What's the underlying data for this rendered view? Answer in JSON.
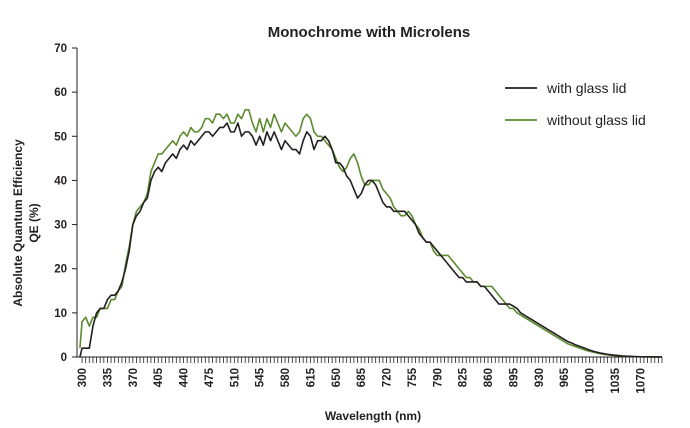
{
  "chart_data": {
    "type": "line",
    "title": "Monochrome with Microlens",
    "xlabel": "Wavelength (nm)",
    "ylabel_line1": "Absolute Quantum Efficiency",
    "ylabel_line2": "QE (%)",
    "xlim": [
      293,
      1100
    ],
    "ylim": [
      0,
      70
    ],
    "x_tick_labels": [
      "300",
      "335",
      "370",
      "405",
      "440",
      "475",
      "510",
      "545",
      "580",
      "615",
      "650",
      "685",
      "720",
      "755",
      "790",
      "825",
      "860",
      "895",
      "930",
      "965",
      "1000",
      "1035",
      "1070"
    ],
    "y_tick_labels": [
      "0",
      "10",
      "20",
      "30",
      "40",
      "50",
      "60",
      "70"
    ],
    "grid": false,
    "legend": "top-right",
    "series": [
      {
        "name": "with glass lid",
        "color": "#231f20",
        "points": [
          [
            297,
            0
          ],
          [
            300,
            2
          ],
          [
            305,
            2
          ],
          [
            310,
            2
          ],
          [
            315,
            7
          ],
          [
            320,
            10
          ],
          [
            325,
            11
          ],
          [
            330,
            11
          ],
          [
            335,
            13
          ],
          [
            340,
            14
          ],
          [
            345,
            14
          ],
          [
            350,
            15
          ],
          [
            355,
            17
          ],
          [
            360,
            20
          ],
          [
            365,
            24
          ],
          [
            370,
            30
          ],
          [
            375,
            32
          ],
          [
            380,
            33
          ],
          [
            385,
            35
          ],
          [
            390,
            36
          ],
          [
            395,
            40
          ],
          [
            400,
            42
          ],
          [
            405,
            43
          ],
          [
            410,
            42
          ],
          [
            415,
            44
          ],
          [
            420,
            45
          ],
          [
            425,
            46
          ],
          [
            430,
            45
          ],
          [
            435,
            47
          ],
          [
            440,
            48
          ],
          [
            445,
            47
          ],
          [
            450,
            49
          ],
          [
            455,
            48
          ],
          [
            460,
            49
          ],
          [
            465,
            50
          ],
          [
            470,
            51
          ],
          [
            475,
            51
          ],
          [
            480,
            50
          ],
          [
            485,
            51
          ],
          [
            490,
            52
          ],
          [
            495,
            52
          ],
          [
            500,
            53
          ],
          [
            505,
            51
          ],
          [
            510,
            51
          ],
          [
            515,
            53
          ],
          [
            520,
            50
          ],
          [
            525,
            51
          ],
          [
            530,
            51
          ],
          [
            535,
            50
          ],
          [
            540,
            48
          ],
          [
            545,
            50
          ],
          [
            550,
            48
          ],
          [
            555,
            51
          ],
          [
            560,
            49
          ],
          [
            565,
            51
          ],
          [
            570,
            49
          ],
          [
            575,
            47
          ],
          [
            580,
            49
          ],
          [
            585,
            48
          ],
          [
            590,
            47
          ],
          [
            595,
            47
          ],
          [
            600,
            46
          ],
          [
            605,
            49
          ],
          [
            610,
            51
          ],
          [
            615,
            50
          ],
          [
            620,
            47
          ],
          [
            625,
            49
          ],
          [
            630,
            49
          ],
          [
            635,
            50
          ],
          [
            640,
            49
          ],
          [
            645,
            47
          ],
          [
            650,
            44
          ],
          [
            655,
            44
          ],
          [
            660,
            43
          ],
          [
            665,
            41
          ],
          [
            670,
            40
          ],
          [
            675,
            38
          ],
          [
            680,
            36
          ],
          [
            685,
            37
          ],
          [
            690,
            39
          ],
          [
            695,
            40
          ],
          [
            700,
            40
          ],
          [
            705,
            39
          ],
          [
            710,
            37
          ],
          [
            715,
            35
          ],
          [
            720,
            34
          ],
          [
            725,
            34
          ],
          [
            730,
            33
          ],
          [
            735,
            33
          ],
          [
            740,
            33
          ],
          [
            745,
            33
          ],
          [
            750,
            32
          ],
          [
            755,
            31
          ],
          [
            760,
            30
          ],
          [
            765,
            28
          ],
          [
            770,
            27
          ],
          [
            775,
            26
          ],
          [
            780,
            26
          ],
          [
            785,
            25
          ],
          [
            790,
            24
          ],
          [
            795,
            23
          ],
          [
            800,
            22
          ],
          [
            805,
            21
          ],
          [
            810,
            20
          ],
          [
            815,
            19
          ],
          [
            820,
            18
          ],
          [
            825,
            18
          ],
          [
            830,
            17
          ],
          [
            835,
            17
          ],
          [
            840,
            17
          ],
          [
            845,
            17
          ],
          [
            850,
            16
          ],
          [
            855,
            16
          ],
          [
            860,
            15
          ],
          [
            865,
            14
          ],
          [
            870,
            13
          ],
          [
            875,
            12
          ],
          [
            880,
            12
          ],
          [
            885,
            12
          ],
          [
            890,
            12
          ],
          [
            895,
            11.5
          ],
          [
            900,
            11
          ],
          [
            905,
            10
          ],
          [
            910,
            9.5
          ],
          [
            915,
            9
          ],
          [
            920,
            8.5
          ],
          [
            925,
            8
          ],
          [
            930,
            7.5
          ],
          [
            935,
            7
          ],
          [
            940,
            6.5
          ],
          [
            945,
            6
          ],
          [
            950,
            5.5
          ],
          [
            955,
            5
          ],
          [
            960,
            4.5
          ],
          [
            965,
            4
          ],
          [
            970,
            3.5
          ],
          [
            975,
            3.2
          ],
          [
            980,
            2.8
          ],
          [
            985,
            2.5
          ],
          [
            990,
            2.2
          ],
          [
            995,
            1.9
          ],
          [
            1000,
            1.6
          ],
          [
            1005,
            1.3
          ],
          [
            1010,
            1.1
          ],
          [
            1015,
            0.9
          ],
          [
            1020,
            0.75
          ],
          [
            1025,
            0.6
          ],
          [
            1030,
            0.5
          ],
          [
            1035,
            0.4
          ],
          [
            1040,
            0.32
          ],
          [
            1045,
            0.25
          ],
          [
            1050,
            0.2
          ],
          [
            1055,
            0.15
          ],
          [
            1060,
            0.1
          ],
          [
            1065,
            0.08
          ],
          [
            1070,
            0.06
          ],
          [
            1080,
            0.04
          ],
          [
            1090,
            0.02
          ],
          [
            1100,
            0.01
          ]
        ]
      },
      {
        "name": "without glass lid",
        "color": "#5c8a2e",
        "points": [
          [
            297,
            2
          ],
          [
            300,
            8
          ],
          [
            305,
            9
          ],
          [
            310,
            7
          ],
          [
            315,
            9
          ],
          [
            320,
            9
          ],
          [
            325,
            11
          ],
          [
            330,
            11
          ],
          [
            335,
            11
          ],
          [
            340,
            13
          ],
          [
            345,
            13
          ],
          [
            350,
            15
          ],
          [
            355,
            16
          ],
          [
            360,
            21
          ],
          [
            365,
            25
          ],
          [
            370,
            30
          ],
          [
            375,
            33
          ],
          [
            380,
            34
          ],
          [
            385,
            35
          ],
          [
            390,
            37
          ],
          [
            395,
            42
          ],
          [
            400,
            44
          ],
          [
            405,
            46
          ],
          [
            410,
            46
          ],
          [
            415,
            47
          ],
          [
            420,
            48
          ],
          [
            425,
            49
          ],
          [
            430,
            48
          ],
          [
            435,
            50
          ],
          [
            440,
            51
          ],
          [
            445,
            50
          ],
          [
            450,
            52
          ],
          [
            455,
            51
          ],
          [
            460,
            51
          ],
          [
            465,
            52
          ],
          [
            470,
            54
          ],
          [
            475,
            54
          ],
          [
            480,
            53
          ],
          [
            485,
            55
          ],
          [
            490,
            55
          ],
          [
            495,
            54
          ],
          [
            500,
            55
          ],
          [
            505,
            53
          ],
          [
            510,
            53
          ],
          [
            515,
            55
          ],
          [
            520,
            54
          ],
          [
            525,
            56
          ],
          [
            530,
            56
          ],
          [
            535,
            53
          ],
          [
            540,
            51
          ],
          [
            545,
            54
          ],
          [
            550,
            51
          ],
          [
            555,
            54
          ],
          [
            560,
            52
          ],
          [
            565,
            55
          ],
          [
            570,
            53
          ],
          [
            575,
            51
          ],
          [
            580,
            53
          ],
          [
            585,
            52
          ],
          [
            590,
            51
          ],
          [
            595,
            50
          ],
          [
            600,
            51
          ],
          [
            605,
            54
          ],
          [
            610,
            55
          ],
          [
            615,
            54
          ],
          [
            620,
            51
          ],
          [
            625,
            50
          ],
          [
            630,
            50
          ],
          [
            635,
            49
          ],
          [
            640,
            48
          ],
          [
            645,
            47
          ],
          [
            650,
            45
          ],
          [
            655,
            43
          ],
          [
            660,
            42
          ],
          [
            665,
            43
          ],
          [
            670,
            45
          ],
          [
            675,
            46
          ],
          [
            680,
            44
          ],
          [
            685,
            41
          ],
          [
            690,
            39
          ],
          [
            695,
            39
          ],
          [
            700,
            40
          ],
          [
            705,
            40
          ],
          [
            710,
            40
          ],
          [
            715,
            38
          ],
          [
            720,
            37
          ],
          [
            725,
            36
          ],
          [
            730,
            34
          ],
          [
            735,
            33
          ],
          [
            740,
            32
          ],
          [
            745,
            32
          ],
          [
            750,
            33
          ],
          [
            755,
            32
          ],
          [
            760,
            30
          ],
          [
            765,
            29
          ],
          [
            770,
            27
          ],
          [
            775,
            26
          ],
          [
            780,
            26
          ],
          [
            785,
            24
          ],
          [
            790,
            23
          ],
          [
            795,
            23
          ],
          [
            800,
            23
          ],
          [
            805,
            23
          ],
          [
            810,
            22
          ],
          [
            815,
            21
          ],
          [
            820,
            20
          ],
          [
            825,
            19
          ],
          [
            830,
            18
          ],
          [
            835,
            18
          ],
          [
            840,
            17
          ],
          [
            845,
            17
          ],
          [
            850,
            16
          ],
          [
            855,
            16
          ],
          [
            860,
            16
          ],
          [
            865,
            16
          ],
          [
            870,
            15
          ],
          [
            875,
            14
          ],
          [
            880,
            13
          ],
          [
            885,
            12
          ],
          [
            890,
            11
          ],
          [
            895,
            11
          ],
          [
            900,
            10
          ],
          [
            905,
            9.5
          ],
          [
            910,
            9
          ],
          [
            915,
            8.5
          ],
          [
            920,
            8
          ],
          [
            925,
            7.5
          ],
          [
            930,
            7
          ],
          [
            935,
            6.5
          ],
          [
            940,
            6
          ],
          [
            945,
            5.5
          ],
          [
            950,
            5
          ],
          [
            955,
            4.5
          ],
          [
            960,
            4
          ],
          [
            965,
            3.5
          ],
          [
            970,
            3
          ],
          [
            975,
            2.7
          ],
          [
            980,
            2.4
          ],
          [
            985,
            2.1
          ],
          [
            990,
            1.8
          ],
          [
            995,
            1.5
          ],
          [
            1000,
            1.3
          ],
          [
            1005,
            1.1
          ],
          [
            1010,
            0.9
          ],
          [
            1015,
            0.75
          ],
          [
            1020,
            0.6
          ],
          [
            1025,
            0.5
          ],
          [
            1030,
            0.4
          ],
          [
            1035,
            0.33
          ],
          [
            1040,
            0.26
          ],
          [
            1045,
            0.2
          ],
          [
            1050,
            0.15
          ],
          [
            1055,
            0.12
          ],
          [
            1060,
            0.09
          ],
          [
            1065,
            0.07
          ],
          [
            1070,
            0.05
          ],
          [
            1080,
            0.03
          ],
          [
            1090,
            0.02
          ],
          [
            1100,
            0.01
          ]
        ]
      }
    ]
  }
}
